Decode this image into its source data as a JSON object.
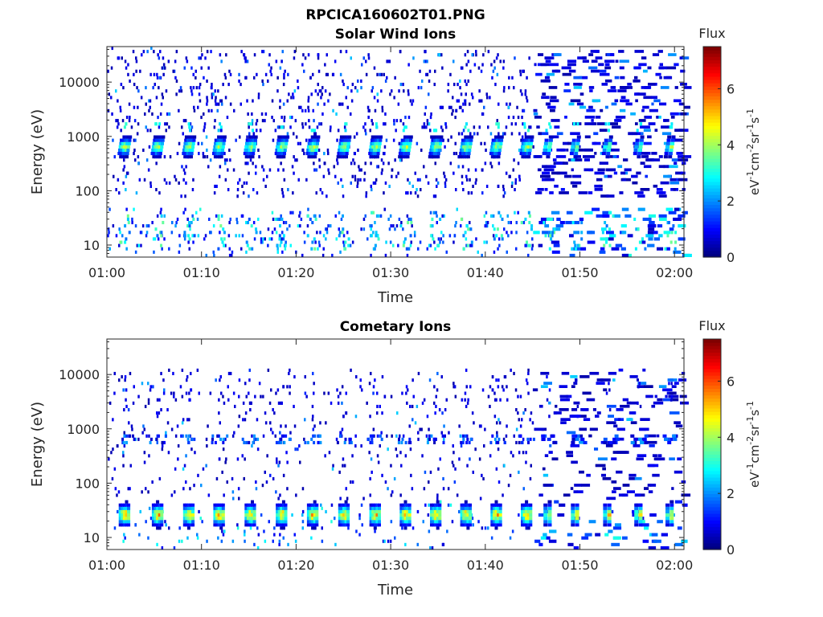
{
  "figure_title": "RPCICA160602T01.PNG",
  "chart_data": [
    {
      "type": "heatmap",
      "title": "Solar Wind Ions",
      "xlabel": "Time",
      "ylabel": "Energy (eV)",
      "x_ticks": [
        "01:00",
        "01:10",
        "01:20",
        "01:30",
        "01:40",
        "01:50",
        "02:00"
      ],
      "x_range_minutes": [
        0,
        61
      ],
      "y_ticks": [
        10,
        100,
        1000,
        10000
      ],
      "y_tick_labels": [
        "10",
        "100",
        "1000",
        "10000"
      ],
      "y_range": [
        6,
        45000
      ],
      "y_scale": "log",
      "colorbar": {
        "title": "Flux",
        "label": "eV-1cm-2sr-1s-1",
        "range": [
          0,
          7.5
        ],
        "ticks": [
          0,
          2,
          4,
          6
        ],
        "tick_labels": [
          "0",
          "2",
          "4",
          "6"
        ],
        "colormap": "jet"
      },
      "sweep_minutes": [
        1.8,
        5.3,
        8.6,
        11.8,
        15.1,
        18.4,
        21.7,
        25.0,
        28.3,
        31.5,
        34.7,
        37.9,
        41.1,
        44.3,
        46.6,
        49.5,
        52.9,
        56.2,
        59.5
      ],
      "peak_energy_ev": 600,
      "peak_flux": 4.6
    },
    {
      "type": "heatmap",
      "title": "Cometary Ions",
      "xlabel": "Time",
      "ylabel": "Energy (eV)",
      "x_ticks": [
        "01:00",
        "01:10",
        "01:20",
        "01:30",
        "01:40",
        "01:50",
        "02:00"
      ],
      "x_range_minutes": [
        0,
        61
      ],
      "y_ticks": [
        10,
        100,
        1000,
        10000
      ],
      "y_tick_labels": [
        "10",
        "100",
        "1000",
        "10000"
      ],
      "y_range": [
        6,
        45000
      ],
      "y_scale": "log",
      "colorbar": {
        "title": "Flux",
        "label": "eV-1cm-2sr-1s-1",
        "range": [
          0,
          7.5
        ],
        "ticks": [
          0,
          2,
          4,
          6
        ],
        "tick_labels": [
          "0",
          "2",
          "4",
          "6"
        ],
        "colormap": "jet"
      },
      "sweep_minutes": [
        1.8,
        5.3,
        8.6,
        11.8,
        15.1,
        18.4,
        21.7,
        25.0,
        28.3,
        31.5,
        34.7,
        37.9,
        41.1,
        44.3,
        46.6,
        49.5,
        52.9,
        56.2,
        59.5
      ],
      "peak_energy_ev": 25,
      "peak_flux": 5.8
    }
  ]
}
